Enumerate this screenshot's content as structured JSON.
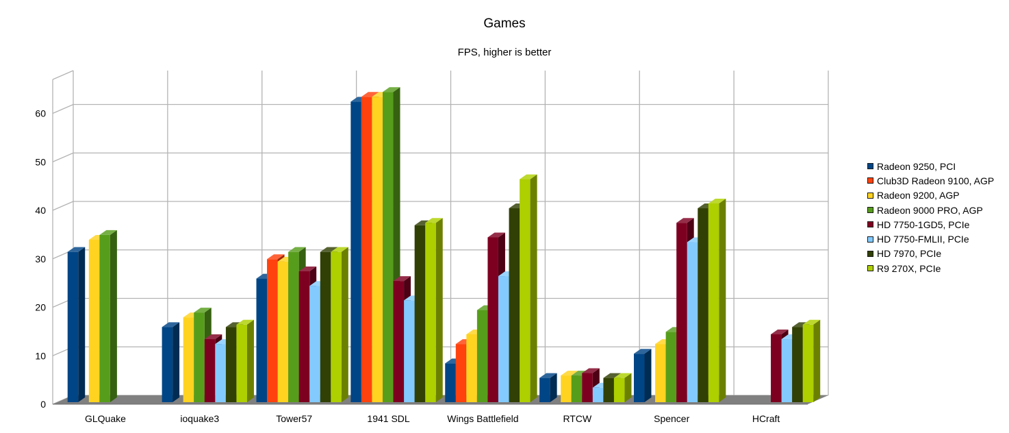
{
  "chart_data": {
    "type": "bar",
    "title": "Games",
    "subtitle": "FPS, higher is better",
    "categories": [
      "GLQuake",
      "ioquake3",
      "Tower57",
      "1941 SDL",
      "Wings Battlefield",
      "RTCW",
      "Spencer",
      "HCraft"
    ],
    "ylim": [
      0,
      60
    ],
    "yticks": [
      0,
      10,
      20,
      30,
      40,
      50,
      60
    ],
    "grid": true,
    "legend_position": "right",
    "series": [
      {
        "name": "Radeon 9250, PCI",
        "color": "#004586",
        "values": [
          31,
          15.5,
          25.5,
          62,
          8,
          5,
          10,
          null
        ]
      },
      {
        "name": "Club3D Radeon 9100, AGP",
        "color": "#ff420e",
        "values": [
          null,
          null,
          29.5,
          63,
          12,
          null,
          null,
          null
        ]
      },
      {
        "name": "Radeon 9200, AGP",
        "color": "#ffd320",
        "values": [
          33.5,
          17.5,
          29,
          63,
          14,
          5.5,
          12,
          null
        ]
      },
      {
        "name": "Radeon 9000 PRO, AGP",
        "color": "#579d1c",
        "values": [
          34.5,
          18.5,
          31,
          64,
          19,
          5.5,
          14.5,
          null
        ]
      },
      {
        "name": "HD 7750-1GD5, PCIe",
        "color": "#7e0021",
        "values": [
          null,
          13,
          27,
          25,
          34,
          6,
          37,
          14
        ]
      },
      {
        "name": "HD 7750-FMLII, PCIe",
        "color": "#83caff",
        "values": [
          null,
          12,
          24,
          21,
          26,
          3,
          33,
          13
        ]
      },
      {
        "name": "HD 7970, PCIe",
        "color": "#314004",
        "values": [
          null,
          15.5,
          31,
          36.5,
          40,
          5,
          40,
          15.5
        ]
      },
      {
        "name": "R9 270X, PCIe",
        "color": "#aecf00",
        "values": [
          null,
          16,
          31,
          37,
          46,
          5,
          41,
          16
        ]
      }
    ]
  }
}
